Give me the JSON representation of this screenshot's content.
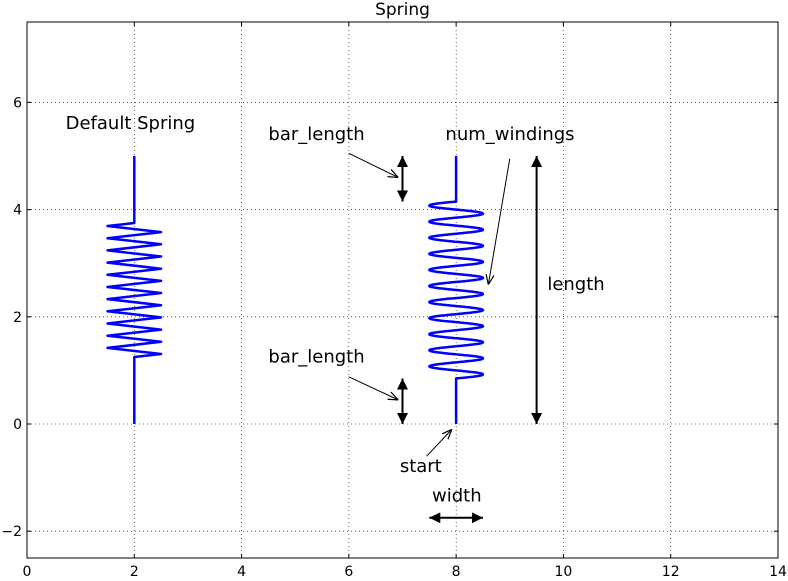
{
  "chart_data": {
    "type": "line",
    "title": "Spring",
    "xlabel": "",
    "ylabel": "",
    "xlim": [
      0,
      14
    ],
    "ylim": [
      -2.5,
      7.5
    ],
    "xticks": [
      0,
      2,
      4,
      6,
      8,
      10,
      12,
      14
    ],
    "yticks": [
      -2,
      0,
      2,
      4,
      6
    ],
    "xtick_labels": [
      "0",
      "2",
      "4",
      "6",
      "8",
      "10",
      "12",
      "14"
    ],
    "ytick_labels": [
      "−2",
      "0",
      "2",
      "4",
      "6"
    ],
    "grid": true,
    "grid_style": "dotted",
    "line_color": "#0000ff",
    "springs": [
      {
        "name": "default",
        "style": "zigzag",
        "start": [
          2,
          0
        ],
        "length": 5,
        "width": 1,
        "bar_length": 1.25,
        "num_windings": 11
      },
      {
        "name": "custom",
        "style": "sine",
        "start": [
          8,
          0
        ],
        "length": 5,
        "width": 1,
        "bar_length": 0.85,
        "num_windings": 11
      }
    ],
    "arrows": [
      {
        "name": "bar-length-top-dim",
        "from": [
          7,
          5
        ],
        "to": [
          7,
          4.15
        ],
        "double": true
      },
      {
        "name": "bar-length-bottom-dim",
        "from": [
          7,
          0.85
        ],
        "to": [
          7,
          0
        ],
        "double": true
      },
      {
        "name": "length-dim",
        "from": [
          9.5,
          5
        ],
        "to": [
          9.5,
          0
        ],
        "double": true
      },
      {
        "name": "width-dim",
        "from": [
          7.5,
          -1.75
        ],
        "to": [
          8.5,
          -1.75
        ],
        "double": true
      }
    ],
    "annotations": [
      {
        "text": "Default Spring",
        "xy": [
          0.72,
          5.5
        ]
      },
      {
        "text": "bar_length",
        "xy": [
          4.5,
          5.3
        ],
        "arrow_from": [
          6.0,
          5.05
        ],
        "arrow_to": [
          6.92,
          4.6
        ]
      },
      {
        "text": "num_windings",
        "xy": [
          7.8,
          5.3
        ],
        "arrow_from": [
          9.0,
          4.95
        ],
        "arrow_to": [
          8.6,
          2.6
        ]
      },
      {
        "text": "length",
        "xy": [
          9.7,
          2.5
        ]
      },
      {
        "text": "bar_length",
        "xy": [
          4.5,
          1.15
        ],
        "arrow_from": [
          6.0,
          0.88
        ],
        "arrow_to": [
          6.92,
          0.45
        ]
      },
      {
        "text": "start",
        "xy": [
          6.95,
          -0.9
        ],
        "arrow_from": [
          7.45,
          -0.6
        ],
        "arrow_to": [
          7.92,
          -0.1
        ]
      },
      {
        "text": "width",
        "xy": [
          7.55,
          -1.45
        ]
      }
    ]
  }
}
